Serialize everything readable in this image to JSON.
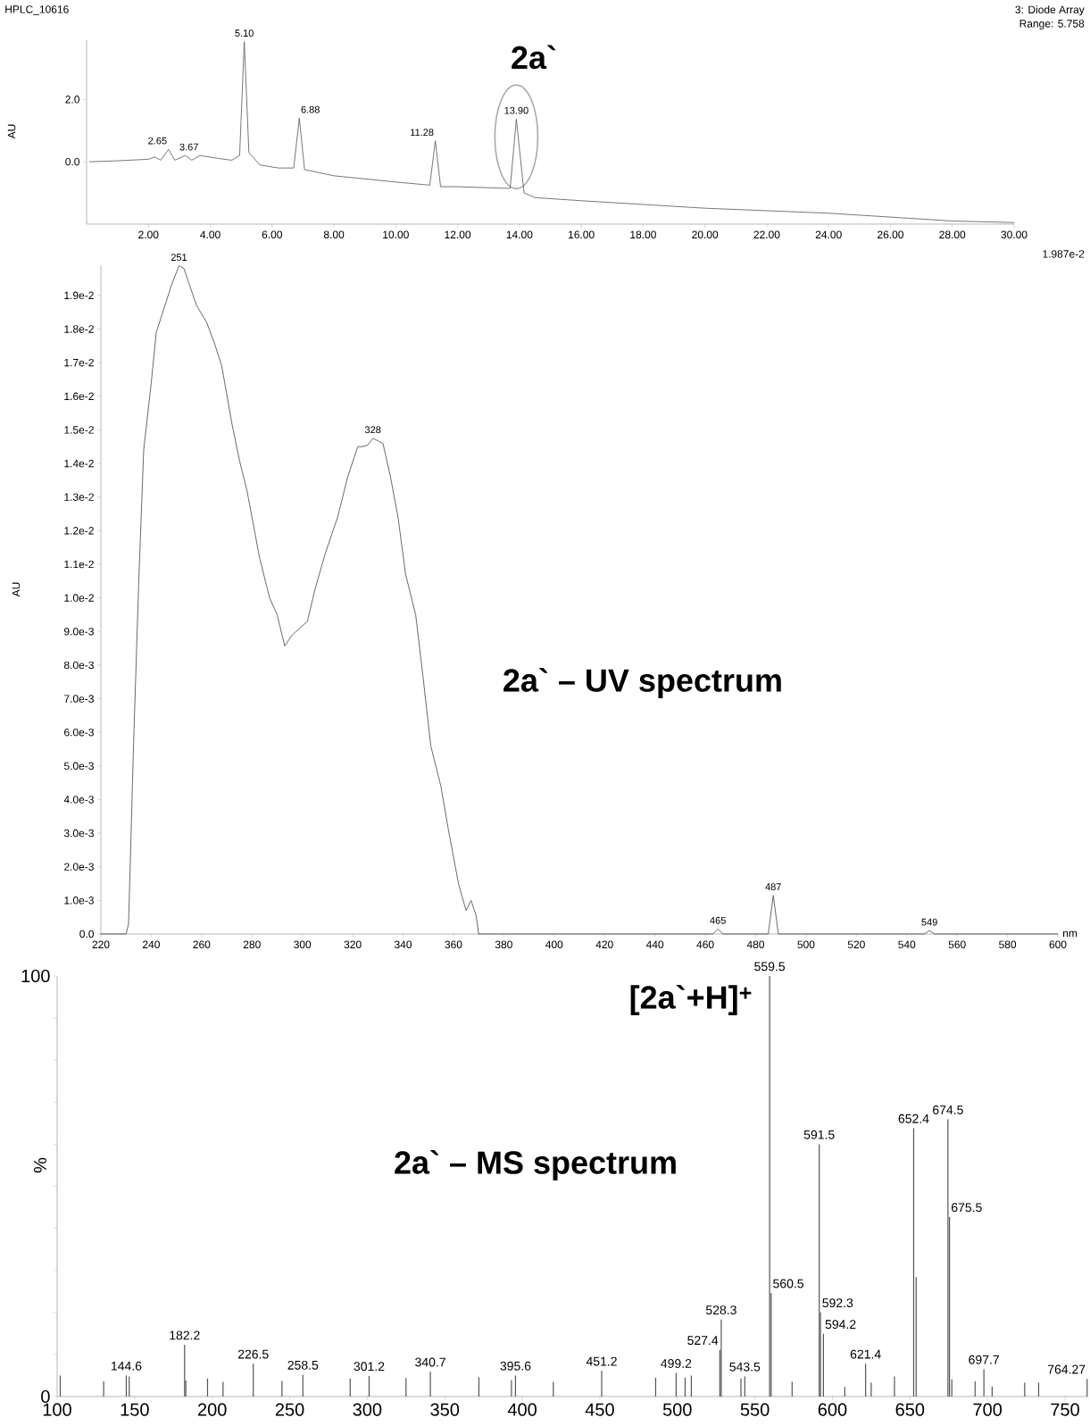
{
  "chart_data": [
    {
      "type": "line",
      "title": "HPLC_10616",
      "ylabel": "AU",
      "color": "#555555",
      "x": [
        0.1,
        1,
        2,
        2.2,
        2.4,
        2.65,
        2.85,
        3.2,
        3.4,
        3.67,
        4.3,
        4.7,
        4.95,
        5.1,
        5.25,
        5.6,
        6.2,
        6.7,
        6.88,
        7.05,
        8,
        10,
        11.1,
        11.28,
        11.45,
        12,
        13.5,
        13.7,
        13.9,
        14.15,
        14.5,
        16,
        20,
        24,
        28,
        30
      ],
      "values": [
        0.0,
        0.03,
        0.08,
        0.15,
        0.05,
        0.4,
        0.05,
        0.2,
        0.05,
        0.2,
        0.1,
        0.05,
        0.2,
        3.85,
        0.3,
        -0.1,
        -0.2,
        -0.2,
        1.4,
        -0.25,
        -0.45,
        -0.65,
        -0.75,
        0.67,
        -0.8,
        -0.8,
        -0.85,
        -0.85,
        1.37,
        -1.0,
        -1.15,
        -1.25,
        -1.49,
        -1.65,
        -1.9,
        -1.95
      ],
      "xlim": [
        0,
        30
      ],
      "ylim": [
        -2.0,
        3.9
      ],
      "xticks": [
        {
          "value": 2,
          "label": "2.00"
        },
        {
          "value": 4,
          "label": "4.00"
        },
        {
          "value": 6,
          "label": "6.00"
        },
        {
          "value": 8,
          "label": "8.00"
        },
        {
          "value": 10,
          "label": "10.00"
        },
        {
          "value": 12,
          "label": "12.00"
        },
        {
          "value": 14,
          "label": "14.00"
        },
        {
          "value": 16,
          "label": "16.00"
        },
        {
          "value": 18,
          "label": "18.00"
        },
        {
          "value": 20,
          "label": "20.00"
        },
        {
          "value": 22,
          "label": "22.00"
        },
        {
          "value": 24,
          "label": "24.00"
        },
        {
          "value": 26,
          "label": "26.00"
        },
        {
          "value": 28,
          "label": "28.00"
        },
        {
          "value": 30,
          "label": "30.00"
        }
      ],
      "yticks": [
        {
          "value": 0,
          "label": "0.0"
        },
        {
          "value": 2,
          "label": "2.0"
        }
      ],
      "annotations": [
        "3: Diode Array",
        "Range: 5.758",
        {
          "text": "2.65",
          "x": 2.65,
          "y": 0.4
        },
        {
          "text": "3.67",
          "x": 3.67,
          "y": 0.2
        },
        {
          "text": "5.10",
          "x": 5.1,
          "y": 3.85
        },
        {
          "text": "6.88",
          "x": 6.88,
          "y": 1.4
        },
        {
          "text": "11.28",
          "x": 11.28,
          "y": 0.67
        },
        {
          "text": "13.90",
          "x": 13.9,
          "y": 1.37
        },
        "2a`"
      ]
    },
    {
      "type": "line",
      "xlabel": "nm",
      "ylabel": "AU",
      "color": "#444444",
      "x": [
        220,
        230,
        231,
        233,
        235,
        237,
        240,
        242,
        245,
        248,
        251,
        253,
        255,
        258,
        262,
        265,
        268,
        272,
        275,
        278,
        283,
        287,
        290,
        293,
        296,
        299,
        302,
        305,
        309,
        314,
        318,
        322,
        324,
        326,
        328,
        332,
        335,
        338,
        341,
        345,
        348,
        351,
        355,
        358,
        362,
        365,
        367,
        369,
        370,
        380,
        463,
        465,
        467,
        485,
        487,
        489,
        547,
        549,
        551,
        600
      ],
      "values": [
        0,
        0,
        0.0003,
        0.0057,
        0.0104,
        0.0144,
        0.0164,
        0.0179,
        0.0186,
        0.0193,
        0.01988,
        0.0198,
        0.01935,
        0.0187,
        0.0182,
        0.0176,
        0.0169,
        0.0152,
        0.0141,
        0.0132,
        0.0112,
        0.01,
        0.0095,
        0.00857,
        0.0089,
        0.0091,
        0.0093,
        0.01025,
        0.0113,
        0.0124,
        0.0136,
        0.0145,
        0.0145,
        0.01455,
        0.01475,
        0.0146,
        0.0136,
        0.0124,
        0.0107,
        0.0095,
        0.0076,
        0.0056,
        0.0044,
        0.0031,
        0.0015,
        0.0007,
        0.001,
        0.00055,
        0,
        0,
        0,
        0.00015,
        0,
        0,
        0.00115,
        0,
        0,
        0.0001,
        0,
        0
      ],
      "xlim": [
        220,
        600
      ],
      "ylim": [
        0,
        0.0199
      ],
      "xticks": [
        220,
        240,
        260,
        280,
        300,
        320,
        340,
        360,
        380,
        400,
        420,
        440,
        460,
        480,
        500,
        520,
        540,
        560,
        580,
        600
      ],
      "yticks": [
        {
          "value": 0,
          "label": "0.0"
        },
        {
          "value": 0.001,
          "label": "1.0e-3"
        },
        {
          "value": 0.002,
          "label": "2.0e-3"
        },
        {
          "value": 0.003,
          "label": "3.0e-3"
        },
        {
          "value": 0.004,
          "label": "4.0e-3"
        },
        {
          "value": 0.005,
          "label": "5.0e-3"
        },
        {
          "value": 0.006,
          "label": "6.0e-3"
        },
        {
          "value": 0.007,
          "label": "7.0e-3"
        },
        {
          "value": 0.008,
          "label": "8.0e-3"
        },
        {
          "value": 0.009,
          "label": "9.0e-3"
        },
        {
          "value": 0.01,
          "label": "1.0e-2"
        },
        {
          "value": 0.011,
          "label": "1.1e-2"
        },
        {
          "value": 0.012,
          "label": "1.2e-2"
        },
        {
          "value": 0.013,
          "label": "1.3e-2"
        },
        {
          "value": 0.014,
          "label": "1.4e-2"
        },
        {
          "value": 0.015,
          "label": "1.5e-2"
        },
        {
          "value": 0.016,
          "label": "1.6e-2"
        },
        {
          "value": 0.017,
          "label": "1.7e-2"
        },
        {
          "value": 0.018,
          "label": "1.8e-2"
        },
        {
          "value": 0.019,
          "label": "1.9e-2"
        }
      ],
      "annotations": [
        "1.987e-2",
        "2a` – UV spectrum",
        {
          "text": "251",
          "x": 251,
          "y": 0.01988
        },
        {
          "text": "328",
          "x": 328,
          "y": 0.01475
        },
        {
          "text": "465",
          "x": 465,
          "y": 0.00015
        },
        {
          "text": "487",
          "x": 487,
          "y": 0.00115
        },
        {
          "text": "549",
          "x": 549,
          "y": 0.0001
        }
      ]
    },
    {
      "type": "bar",
      "ylabel": "%",
      "color": "#555555",
      "x": [
        102,
        130,
        144.6,
        146.5,
        182.2,
        183,
        197,
        207,
        226.5,
        245,
        258.5,
        289,
        301.2,
        325,
        340.7,
        372,
        393,
        395.6,
        420,
        451.2,
        486,
        499.2,
        505,
        509,
        527.4,
        528.3,
        541,
        543.5,
        559.5,
        560.5,
        574,
        591.5,
        592.3,
        594.2,
        608,
        621.4,
        625,
        640,
        652.4,
        654,
        674.5,
        675.5,
        677,
        692,
        697.7,
        703,
        724,
        733,
        764.27
      ],
      "values": [
        5.0,
        3.6,
        5.0,
        4.8,
        12.3,
        3.8,
        4.3,
        3.5,
        7.8,
        3.7,
        5.2,
        4.3,
        4.9,
        4.4,
        5.9,
        4.6,
        3.9,
        5.0,
        3.5,
        6.1,
        4.5,
        5.6,
        4.5,
        5.0,
        11.1,
        18.3,
        4.3,
        4.8,
        100,
        24.6,
        3.5,
        60.0,
        20.0,
        14.9,
        2.3,
        7.8,
        3.3,
        4.8,
        63.8,
        28.4,
        65.9,
        42.7,
        4.1,
        3.6,
        6.5,
        2.4,
        3.3,
        3.3,
        4.2
      ],
      "xlim": [
        100,
        765
      ],
      "ylim": [
        0,
        100
      ],
      "xticks": [
        100,
        150,
        200,
        250,
        300,
        350,
        400,
        450,
        500,
        550,
        600,
        650,
        700,
        750
      ],
      "yticks": [
        0,
        {
          "value": 10,
          "label": null
        },
        {
          "value": 20,
          "label": null
        },
        {
          "value": 30,
          "label": null
        },
        {
          "value": 40,
          "label": null
        },
        {
          "value": 50,
          "label": null
        },
        {
          "value": 60,
          "label": null
        },
        {
          "value": 70,
          "label": null
        },
        {
          "value": 80,
          "label": null
        },
        {
          "value": 90,
          "label": null
        },
        100
      ],
      "annotations": [
        "2a` – MS spectrum",
        "[2a`+H]$^{+}$",
        {
          "text": "144.6",
          "x": 144.6,
          "y": 5.0
        },
        {
          "text": "182.2",
          "x": 182.2,
          "y": 12.3
        },
        {
          "text": "226.5",
          "x": 226.5,
          "y": 7.8
        },
        {
          "text": "258.5",
          "x": 258.5,
          "y": 5.2
        },
        {
          "text": "301.2",
          "x": 301.2,
          "y": 4.9
        },
        {
          "text": "340.7",
          "x": 340.7,
          "y": 5.9
        },
        {
          "text": "395.6",
          "x": 395.6,
          "y": 5.0
        },
        {
          "text": "451.2",
          "x": 451.2,
          "y": 6.1
        },
        {
          "text": "499.2",
          "x": 499.2,
          "y": 5.6
        },
        {
          "text": "527.4",
          "x": 527.4,
          "y": 11.1
        },
        {
          "text": "528.3",
          "x": 528.3,
          "y": 18.3
        },
        {
          "text": "543.5",
          "x": 543.5,
          "y": 4.8
        },
        {
          "text": "559.5",
          "x": 559.5,
          "y": 100
        },
        {
          "text": "560.5",
          "x": 560.5,
          "y": 24.6
        },
        {
          "text": "591.5",
          "x": 591.5,
          "y": 60.0
        },
        {
          "text": "592.3",
          "x": 592.3,
          "y": 20.0
        },
        {
          "text": "594.2",
          "x": 594.2,
          "y": 14.9
        },
        {
          "text": "621.4",
          "x": 621.4,
          "y": 7.8
        },
        {
          "text": "652.4",
          "x": 652.4,
          "y": 63.8
        },
        {
          "text": "674.5",
          "x": 674.5,
          "y": 65.9
        },
        {
          "text": "675.5",
          "x": 675.5,
          "y": 42.7
        },
        {
          "text": "697.7",
          "x": 697.7,
          "y": 6.5
        },
        {
          "text": "764.27",
          "x": 764.27,
          "y": 4.2
        }
      ]
    }
  ]
}
